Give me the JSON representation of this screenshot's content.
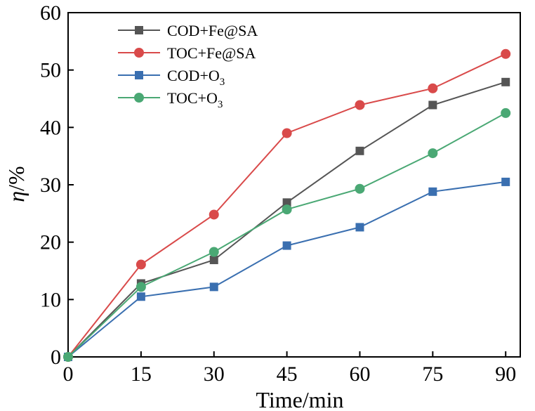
{
  "chart_data": {
    "type": "line",
    "xlabel": "Time/min",
    "ylabel_italic": "η",
    "ylabel_unit": "/%",
    "xlim": [
      0,
      93
    ],
    "ylim": [
      0,
      60
    ],
    "x_ticks": [
      0,
      15,
      30,
      45,
      60,
      75,
      90
    ],
    "y_ticks": [
      0,
      10,
      20,
      30,
      40,
      50,
      60
    ],
    "grid": false,
    "legend_position": "top-left",
    "series": [
      {
        "name": "COD+Fe@SA",
        "name_main": "COD+Fe@SA",
        "name_sub": "",
        "color": "#555555",
        "marker": "square",
        "x": [
          0,
          15,
          30,
          45,
          60,
          75,
          90
        ],
        "y": [
          0,
          12.8,
          16.9,
          26.9,
          35.9,
          43.9,
          47.9
        ]
      },
      {
        "name": "TOC+Fe@SA",
        "name_main": "TOC+Fe@SA",
        "name_sub": "",
        "color": "#d94a4a",
        "marker": "circle",
        "x": [
          0,
          15,
          30,
          45,
          60,
          75,
          90
        ],
        "y": [
          0,
          16.1,
          24.8,
          39.0,
          43.9,
          46.8,
          52.8
        ]
      },
      {
        "name": "COD+O3",
        "name_main": "COD+O",
        "name_sub": "3",
        "color": "#3a6fb0",
        "marker": "square",
        "x": [
          0,
          15,
          30,
          45,
          60,
          75,
          90
        ],
        "y": [
          0,
          10.5,
          12.2,
          19.4,
          22.6,
          28.8,
          30.5
        ]
      },
      {
        "name": "TOC+O3",
        "name_main": "TOC+O",
        "name_sub": "3",
        "color": "#4aa874",
        "marker": "circle",
        "x": [
          0,
          15,
          30,
          45,
          60,
          75,
          90
        ],
        "y": [
          0,
          12.2,
          18.3,
          25.7,
          29.3,
          35.5,
          42.5
        ]
      }
    ]
  }
}
